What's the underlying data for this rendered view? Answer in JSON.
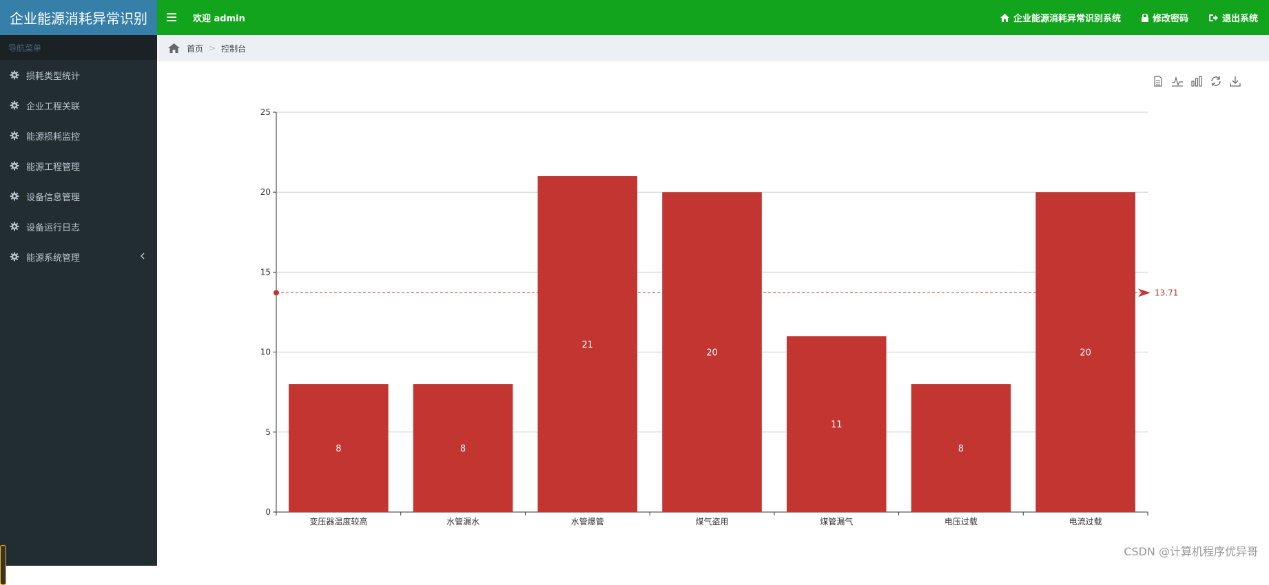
{
  "app": {
    "title": "企业能源消耗异常识别"
  },
  "header": {
    "welcome": "欢迎 admin",
    "nav": [
      {
        "label": "企业能源消耗异常识别系统",
        "icon": "home-icon"
      },
      {
        "label": "修改密码",
        "icon": "lock-icon"
      },
      {
        "label": "退出系统",
        "icon": "logout-icon"
      }
    ]
  },
  "sidebar": {
    "header": "导航菜单",
    "items": [
      {
        "label": "损耗类型统计",
        "icon": "gear-icon"
      },
      {
        "label": "企业工程关联",
        "icon": "gear-icon"
      },
      {
        "label": "能源损耗监控",
        "icon": "gear-icon"
      },
      {
        "label": "能源工程管理",
        "icon": "gear-icon"
      },
      {
        "label": "设备信息管理",
        "icon": "gear-icon"
      },
      {
        "label": "设备运行日志",
        "icon": "gear-icon"
      },
      {
        "label": "能源系统管理",
        "icon": "gear-icon",
        "expandable": true
      }
    ]
  },
  "breadcrumb": {
    "home": "首页",
    "current": "控制台"
  },
  "toolbox": [
    "data-view-icon",
    "line-chart-icon",
    "bar-chart-icon",
    "restore-icon",
    "download-icon"
  ],
  "chart_data": {
    "type": "bar",
    "categories": [
      "变压器温度较高",
      "水管漏水",
      "水管爆管",
      "煤气盗用",
      "煤管漏气",
      "电压过载",
      "电流过载"
    ],
    "values": [
      8,
      8,
      21,
      20,
      11,
      8,
      20
    ],
    "ylim": [
      0,
      25
    ],
    "yticks": [
      0,
      5,
      10,
      15,
      20,
      25
    ],
    "average_line": {
      "value": 13.71,
      "label": "13.71"
    },
    "bar_color": "#c23531",
    "grid": true
  },
  "watermark": "CSDN @计算机程序优异哥"
}
